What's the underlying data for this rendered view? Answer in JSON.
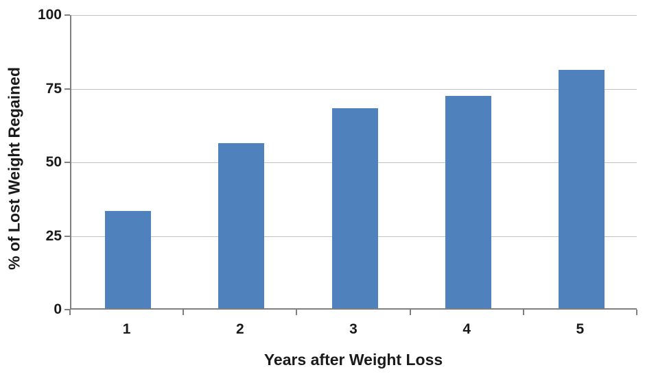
{
  "chart_data": {
    "type": "bar",
    "title": "",
    "categories": [
      "1",
      "2",
      "3",
      "4",
      "5"
    ],
    "values": [
      33,
      56,
      68,
      72,
      81
    ],
    "xlabel": "Years after Weight Loss",
    "ylabel": "% of Lost Weight Regained",
    "ylim": [
      0,
      100
    ],
    "yticks": [
      0,
      25,
      50,
      75,
      100
    ],
    "grid": "horizontal gridlines on, at each y tick including top",
    "legend": "none",
    "colors": {
      "bar": "#4f81bd",
      "gridline": "#c3c3c3",
      "axis": "#7f7f7f",
      "text": "#1a1a1a",
      "background": "#ffffff"
    }
  }
}
